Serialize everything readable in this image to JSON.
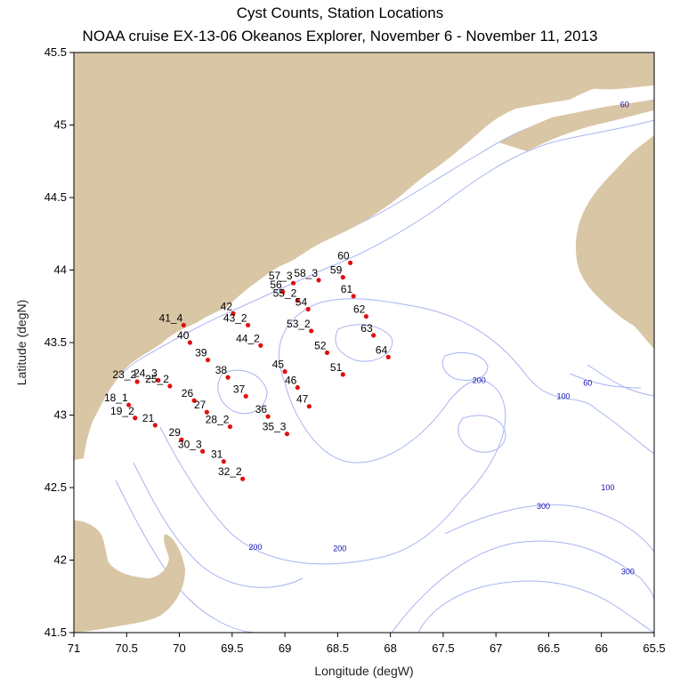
{
  "title": "Cyst Counts, Station Locations",
  "subtitle": "NOAA cruise EX-13-06 Okeanos Explorer, November 6 - November 11, 2013",
  "xlabel": "Longitude (degW)",
  "ylabel": "Latitude (degN)",
  "colors": {
    "land": "#d9c6a5",
    "water": "#ffffff",
    "contour": "#a8b4f0",
    "station": "#e01010",
    "depth_label": "#1010b0"
  },
  "chart_data": {
    "type": "scatter",
    "xlim": [
      71,
      65.5
    ],
    "ylim": [
      41.5,
      45.5
    ],
    "x_ticks": [
      "71",
      "70.5",
      "70",
      "69.5",
      "69",
      "68.5",
      "68",
      "67.5",
      "67",
      "66.5",
      "66",
      "65.5"
    ],
    "y_ticks": [
      "41.5",
      "42",
      "42.5",
      "43",
      "43.5",
      "44",
      "44.5",
      "45",
      "45.5"
    ],
    "stations": [
      {
        "name": "60",
        "lon": 68.38,
        "lat": 44.05
      },
      {
        "name": "59",
        "lon": 68.45,
        "lat": 43.95
      },
      {
        "name": "58_3",
        "lon": 68.68,
        "lat": 43.93
      },
      {
        "name": "57_3",
        "lon": 68.92,
        "lat": 43.91
      },
      {
        "name": "56",
        "lon": 69.02,
        "lat": 43.85
      },
      {
        "name": "61",
        "lon": 68.35,
        "lat": 43.82
      },
      {
        "name": "55_2",
        "lon": 68.88,
        "lat": 43.79
      },
      {
        "name": "54",
        "lon": 68.78,
        "lat": 43.73
      },
      {
        "name": "42",
        "lon": 69.49,
        "lat": 43.7
      },
      {
        "name": "62",
        "lon": 68.23,
        "lat": 43.68
      },
      {
        "name": "43_2",
        "lon": 69.35,
        "lat": 43.62
      },
      {
        "name": "41_4",
        "lon": 69.96,
        "lat": 43.62
      },
      {
        "name": "53_2",
        "lon": 68.75,
        "lat": 43.58
      },
      {
        "name": "63",
        "lon": 68.16,
        "lat": 43.55
      },
      {
        "name": "40",
        "lon": 69.9,
        "lat": 43.5
      },
      {
        "name": "44_2",
        "lon": 69.23,
        "lat": 43.48
      },
      {
        "name": "52",
        "lon": 68.6,
        "lat": 43.43
      },
      {
        "name": "64",
        "lon": 68.02,
        "lat": 43.4
      },
      {
        "name": "39",
        "lon": 69.73,
        "lat": 43.38
      },
      {
        "name": "45",
        "lon": 69.0,
        "lat": 43.3
      },
      {
        "name": "51",
        "lon": 68.45,
        "lat": 43.28
      },
      {
        "name": "38",
        "lon": 69.54,
        "lat": 43.26
      },
      {
        "name": "24_3",
        "lon": 70.2,
        "lat": 43.24
      },
      {
        "name": "23_2",
        "lon": 70.4,
        "lat": 43.23
      },
      {
        "name": "25_2",
        "lon": 70.09,
        "lat": 43.2
      },
      {
        "name": "46",
        "lon": 68.88,
        "lat": 43.19
      },
      {
        "name": "37",
        "lon": 69.37,
        "lat": 43.13
      },
      {
        "name": "26",
        "lon": 69.86,
        "lat": 43.1
      },
      {
        "name": "18_1",
        "lon": 70.48,
        "lat": 43.07
      },
      {
        "name": "47",
        "lon": 68.77,
        "lat": 43.06
      },
      {
        "name": "27",
        "lon": 69.74,
        "lat": 43.02
      },
      {
        "name": "36",
        "lon": 69.16,
        "lat": 42.99
      },
      {
        "name": "19_2",
        "lon": 70.42,
        "lat": 42.98
      },
      {
        "name": "21",
        "lon": 70.23,
        "lat": 42.93
      },
      {
        "name": "28_2",
        "lon": 69.52,
        "lat": 42.92
      },
      {
        "name": "35_3",
        "lon": 68.98,
        "lat": 42.87
      },
      {
        "name": "29",
        "lon": 69.98,
        "lat": 42.83
      },
      {
        "name": "30_3",
        "lon": 69.78,
        "lat": 42.75
      },
      {
        "name": "31",
        "lon": 69.58,
        "lat": 42.68
      },
      {
        "name": "32_2",
        "lon": 69.4,
        "lat": 42.56
      }
    ],
    "depth_labels": [
      {
        "text": "60",
        "lon": 65.78,
        "lat": 45.14
      },
      {
        "text": "60",
        "lon": 66.13,
        "lat": 43.22
      },
      {
        "text": "100",
        "lon": 66.36,
        "lat": 43.13
      },
      {
        "text": "200",
        "lon": 67.16,
        "lat": 43.24
      },
      {
        "text": "100",
        "lon": 65.94,
        "lat": 42.5
      },
      {
        "text": "300",
        "lon": 66.55,
        "lat": 42.37
      },
      {
        "text": "200",
        "lon": 69.28,
        "lat": 42.09
      },
      {
        "text": "200",
        "lon": 68.48,
        "lat": 42.08
      },
      {
        "text": "300",
        "lon": 65.75,
        "lat": 41.92
      }
    ]
  }
}
